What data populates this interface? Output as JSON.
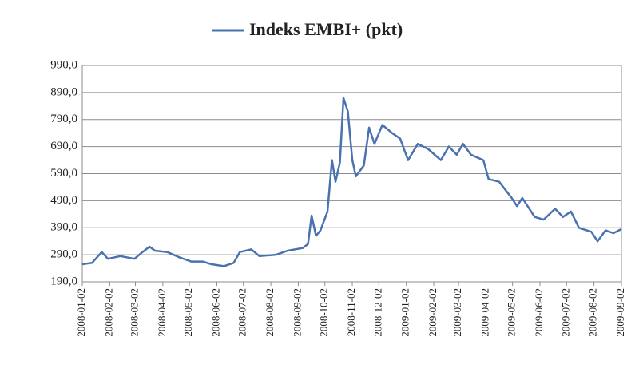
{
  "chart_data": {
    "type": "line",
    "series": [
      {
        "name": "Indeks EMBI+ (pkt)",
        "color": "#4a72b0",
        "values": [
          255,
          260,
          300,
          275,
          285,
          275,
          300,
          320,
          305,
          300,
          280,
          265,
          265,
          255,
          248,
          260,
          300,
          310,
          285,
          290,
          305,
          315,
          330,
          435,
          360,
          380,
          450,
          640,
          560,
          630,
          870,
          820,
          640,
          580,
          620,
          760,
          700,
          770,
          740,
          720,
          640,
          700,
          680,
          640,
          690,
          660,
          700,
          660,
          640,
          570,
          560,
          500,
          470,
          500,
          430,
          420,
          460,
          430,
          450,
          390,
          375,
          340,
          380,
          370,
          385
        ]
      }
    ],
    "x": [
      "2008-01-02",
      "2008-01-13",
      "2008-01-24",
      "2008-01-31",
      "2008-02-14",
      "2008-03-01",
      "2008-03-10",
      "2008-03-18",
      "2008-03-24",
      "2008-04-07",
      "2008-04-21",
      "2008-05-04",
      "2008-05-17",
      "2008-05-27",
      "2008-06-10",
      "2008-06-21",
      "2008-06-28",
      "2008-07-11",
      "2008-07-20",
      "2008-08-08",
      "2008-08-21",
      "2008-09-07",
      "2008-09-13",
      "2008-09-17",
      "2008-09-22",
      "2008-09-27",
      "2008-10-05",
      "2008-10-10",
      "2008-10-14",
      "2008-10-19",
      "2008-10-23",
      "2008-10-28",
      "2008-11-02",
      "2008-11-06",
      "2008-11-15",
      "2008-11-21",
      "2008-11-27",
      "2008-12-06",
      "2008-12-17",
      "2008-12-26",
      "2009-01-04",
      "2009-01-15",
      "2009-01-27",
      "2009-02-10",
      "2009-02-19",
      "2009-02-28",
      "2009-03-07",
      "2009-03-16",
      "2009-03-30",
      "2009-04-05",
      "2009-04-17",
      "2009-05-01",
      "2009-05-07",
      "2009-05-13",
      "2009-05-27",
      "2009-06-06",
      "2009-06-19",
      "2009-06-28",
      "2009-07-07",
      "2009-07-16",
      "2009-07-30",
      "2009-08-06",
      "2009-08-15",
      "2009-08-24",
      "2009-09-02"
    ],
    "xlim": [
      "2008-01-02",
      "2009-09-02"
    ],
    "xticks": [
      "2008-01-02",
      "2008-02-02",
      "2008-03-02",
      "2008-04-02",
      "2008-05-02",
      "2008-06-02",
      "2008-07-02",
      "2008-08-02",
      "2008-09-02",
      "2008-10-02",
      "2008-11-02",
      "2008-12-02",
      "2009-01-02",
      "2009-02-02",
      "2009-03-02",
      "2009-04-02",
      "2009-05-02",
      "2009-06-02",
      "2009-07-02",
      "2009-08-02",
      "2009-09-02"
    ],
    "ylim": [
      190,
      990
    ],
    "yticks": [
      {
        "value": 190,
        "label": "190,0"
      },
      {
        "value": 290,
        "label": "290,0"
      },
      {
        "value": 390,
        "label": "390,0"
      },
      {
        "value": 490,
        "label": "490,0"
      },
      {
        "value": 590,
        "label": "590,0"
      },
      {
        "value": 690,
        "label": "690,0"
      },
      {
        "value": 790,
        "label": "790,0"
      },
      {
        "value": 890,
        "label": "890,0"
      },
      {
        "value": 990,
        "label": "990,0"
      }
    ],
    "grid": true,
    "legend": "top"
  }
}
